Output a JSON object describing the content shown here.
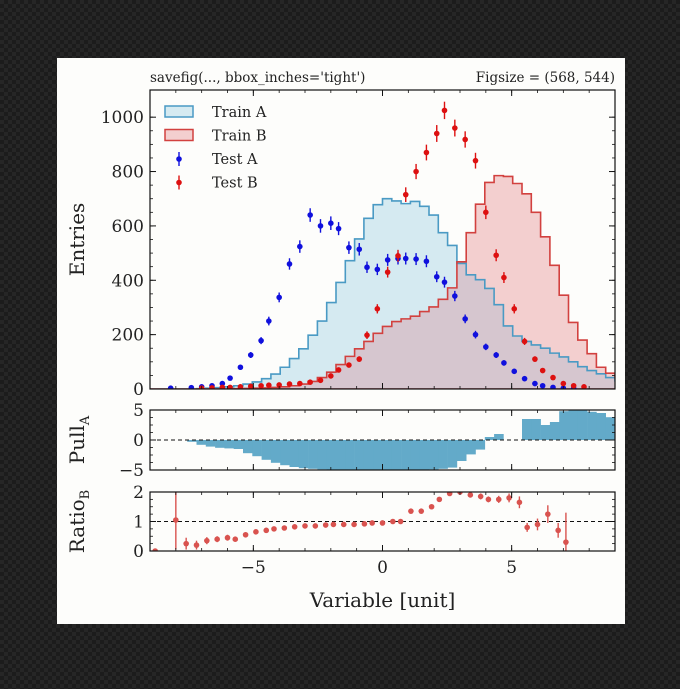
{
  "chart_data": {
    "type": "histogram",
    "header": {
      "left": "savefig(..., bbox_inches='tight')",
      "right": "Figsize = (568, 544)"
    },
    "colors": {
      "train_a_line": "#4a9ac4",
      "train_a_fill": "#d5eaf1",
      "train_b_line": "#d2413f",
      "train_b_fill": "#f3cfcf",
      "overlap_fill": "#d6c6cf",
      "test_a": "#1010dd",
      "test_b": "#dd1010",
      "pull_bar": "#63aac9",
      "ratio_point": "#d9534f"
    },
    "xlim": [
      -9,
      9
    ],
    "x_ticks": [
      -5,
      0,
      5
    ],
    "x_tick_labels": [
      "−5",
      "0",
      "5"
    ],
    "xlabel": "Variable [unit]",
    "bin_edges_start": -9,
    "bin_width": 0.36,
    "main": {
      "ylabel": "Entries",
      "ylim": [
        0,
        1100
      ],
      "y_ticks": [
        0,
        200,
        400,
        600,
        800,
        1000
      ],
      "y_tick_labels": [
        "0",
        "200",
        "400",
        "600",
        "800",
        "1000"
      ],
      "legend": [
        {
          "label": "Train A",
          "kind": "fill-a"
        },
        {
          "label": "Train B",
          "kind": "fill-b"
        },
        {
          "label": "Test A",
          "kind": "point-a"
        },
        {
          "label": "Test B",
          "kind": "point-b"
        }
      ],
      "train_a": [
        0,
        0,
        0,
        0,
        0,
        1,
        3,
        5,
        8,
        12,
        18,
        26,
        38,
        55,
        80,
        112,
        148,
        198,
        250,
        318,
        392,
        472,
        552,
        628,
        678,
        700,
        692,
        682,
        690,
        672,
        640,
        575,
        528,
        462,
        420,
        402,
        370,
        310,
        232,
        195,
        175,
        162,
        150,
        132,
        118,
        100,
        82,
        68,
        56,
        42,
        30,
        22,
        14,
        9,
        5,
        3,
        2,
        1,
        0,
        0,
        0,
        0,
        0,
        0,
        0,
        0,
        0,
        0,
        0,
        0
      ],
      "train_b": [
        0,
        0,
        0,
        0,
        0,
        0,
        0,
        0,
        0,
        1,
        2,
        3,
        4,
        6,
        8,
        12,
        18,
        28,
        42,
        62,
        90,
        120,
        148,
        175,
        205,
        230,
        248,
        258,
        268,
        285,
        302,
        330,
        372,
        468,
        575,
        680,
        760,
        785,
        782,
        756,
        718,
        650,
        560,
        455,
        345,
        245,
        180,
        130,
        80,
        58,
        42,
        30,
        20,
        12,
        6,
        3,
        1,
        0,
        0,
        0,
        0,
        0,
        0,
        0,
        0,
        0,
        0,
        0,
        0,
        0
      ],
      "test_a": {
        "x": [
          -8.2,
          -7.4,
          -7.0,
          -6.6,
          -6.2,
          -5.9,
          -5.5,
          -5.1,
          -4.7,
          -4.4,
          -4.0,
          -3.6,
          -3.2,
          -2.8,
          -2.4,
          -2.0,
          -1.7,
          -1.3,
          -0.9,
          -0.6,
          -0.2,
          0.2,
          0.6,
          0.9,
          1.3,
          1.7,
          2.1,
          2.4,
          2.8,
          3.2,
          3.6,
          4.0,
          4.4,
          4.7,
          5.1,
          5.5,
          5.9,
          6.2,
          6.6,
          7.0,
          7.4
        ],
        "y": [
          3,
          5,
          8,
          12,
          20,
          40,
          80,
          125,
          178,
          250,
          337,
          460,
          524,
          640,
          600,
          610,
          590,
          520,
          514,
          448,
          440,
          475,
          480,
          480,
          478,
          470,
          413,
          393,
          342,
          258,
          200,
          155,
          125,
          96,
          65,
          38,
          20,
          12,
          6,
          3,
          2
        ],
        "err": [
          2,
          2,
          3,
          4,
          5,
          7,
          9,
          11,
          13,
          16,
          18,
          21,
          23,
          25,
          25,
          25,
          24,
          23,
          23,
          21,
          21,
          22,
          22,
          22,
          22,
          22,
          20,
          20,
          19,
          16,
          14,
          12,
          11,
          10,
          8,
          6,
          4,
          3,
          2,
          2,
          1
        ]
      },
      "test_b": {
        "x": [
          -7.0,
          -6.6,
          -6.2,
          -5.9,
          -5.5,
          -5.1,
          -4.7,
          -4.4,
          -4.0,
          -3.6,
          -3.2,
          -2.8,
          -2.4,
          -2.0,
          -1.7,
          -1.3,
          -0.9,
          -0.6,
          -0.2,
          0.2,
          0.6,
          0.9,
          1.3,
          1.7,
          2.1,
          2.4,
          2.8,
          3.2,
          3.6,
          4.0,
          4.4,
          4.7,
          5.1,
          5.5,
          5.9,
          6.2,
          6.6,
          7.0,
          7.4,
          7.8
        ],
        "y": [
          3,
          4,
          6,
          6,
          8,
          10,
          12,
          14,
          15,
          18,
          20,
          25,
          32,
          48,
          70,
          88,
          110,
          198,
          295,
          430,
          490,
          715,
          800,
          870,
          940,
          1025,
          960,
          918,
          840,
          650,
          492,
          410,
          295,
          175,
          110,
          68,
          42,
          20,
          12,
          8
        ],
        "err": [
          2,
          2,
          2,
          2,
          3,
          3,
          3,
          4,
          4,
          4,
          4,
          5,
          6,
          7,
          8,
          9,
          10,
          14,
          17,
          20,
          22,
          27,
          28,
          29,
          31,
          32,
          31,
          30,
          29,
          25,
          22,
          20,
          17,
          13,
          10,
          8,
          6,
          4,
          3,
          3
        ]
      }
    },
    "pull": {
      "ylabel": "Pull",
      "ylabel_sub": "A",
      "ylim": [
        -5,
        5
      ],
      "y_ticks": [
        -5,
        0,
        5
      ],
      "y_tick_labels": [
        "−5",
        "0",
        "5"
      ],
      "values": [
        0,
        0,
        0,
        0,
        -0.3,
        -0.8,
        -1.1,
        -1.3,
        -1.4,
        -1.5,
        -2.2,
        -2.7,
        -3.3,
        -3.8,
        -4.2,
        -4.5,
        -4.7,
        -4.8,
        -4.9,
        -5,
        -5,
        -5,
        -5,
        -5,
        -5,
        -5,
        -5,
        -5,
        -5,
        -5,
        -4.9,
        -4.8,
        -4.6,
        -3.5,
        -2.4,
        -1.6,
        0.5,
        1,
        0,
        0,
        3.5,
        3.5,
        2.5,
        3,
        4.8,
        5,
        5,
        4.7,
        4.5,
        3.8,
        2.9,
        2.7,
        2.8,
        2.6,
        3,
        -0.6,
        -0.7,
        0.3,
        0.4,
        0.8,
        1.1,
        1.4,
        1.5,
        0,
        0,
        0,
        0.1,
        0.3,
        2,
        -1.3
      ]
    },
    "ratio": {
      "ylabel": "Ratio",
      "ylabel_sub": "B",
      "ylim": [
        0,
        2
      ],
      "y_ticks": [
        0,
        1,
        2
      ],
      "y_tick_labels": [
        "0",
        "1",
        "2"
      ],
      "x": [
        -8.8,
        -8.0,
        -7.6,
        -7.2,
        -6.8,
        -6.4,
        -6.0,
        -5.7,
        -5.3,
        -4.9,
        -4.5,
        -4.2,
        -3.8,
        -3.4,
        -3.0,
        -2.6,
        -2.2,
        -1.9,
        -1.5,
        -1.1,
        -0.7,
        -0.4,
        0.0,
        0.4,
        0.7,
        1.1,
        1.5,
        1.9,
        2.2,
        2.6,
        3.0,
        3.4,
        3.8,
        4.1,
        4.5,
        4.9,
        5.3,
        5.6,
        6.0,
        6.4,
        6.8,
        7.1
      ],
      "y": [
        0.0,
        1.05,
        0.25,
        0.2,
        0.35,
        0.4,
        0.45,
        0.4,
        0.55,
        0.65,
        0.7,
        0.75,
        0.78,
        0.82,
        0.85,
        0.85,
        0.88,
        0.9,
        0.9,
        0.9,
        0.92,
        0.95,
        0.95,
        1.0,
        1.0,
        1.35,
        1.35,
        1.5,
        1.75,
        1.95,
        2.0,
        1.9,
        1.85,
        1.75,
        1.75,
        1.8,
        1.65,
        0.8,
        0.9,
        1.25,
        0.7,
        0.3
      ],
      "err": [
        0.05,
        1.0,
        0.2,
        0.15,
        0.12,
        0.1,
        0.1,
        0.08,
        0.08,
        0.07,
        0.06,
        0.05,
        0.05,
        0.04,
        0.04,
        0.03,
        0.03,
        0.03,
        0.03,
        0.03,
        0.03,
        0.03,
        0.03,
        0.03,
        0.03,
        0.04,
        0.04,
        0.05,
        0.05,
        0.06,
        0.07,
        0.08,
        0.1,
        0.1,
        0.12,
        0.15,
        0.2,
        0.15,
        0.2,
        0.3,
        0.25,
        1.0
      ]
    }
  }
}
